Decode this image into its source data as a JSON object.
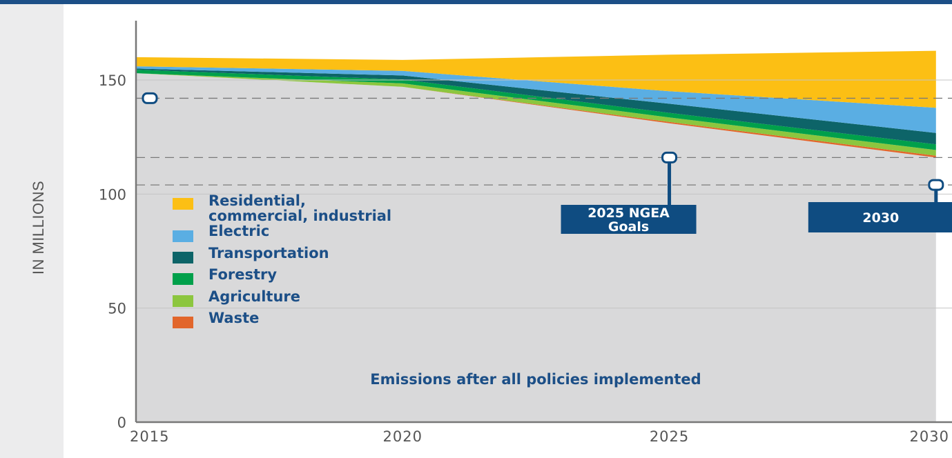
{
  "chart_data": {
    "type": "area",
    "title": "",
    "xlabel": "",
    "ylabel": "IN MILLIONS",
    "x": [
      2015,
      2020,
      2025,
      2030
    ],
    "xlim": [
      2015,
      2030
    ],
    "ylim": [
      0,
      175
    ],
    "x_ticks": [
      "2015",
      "2020",
      "2025",
      "2030"
    ],
    "y_ticks": [
      "0",
      "50",
      "100",
      "150"
    ],
    "grid": true,
    "stacked": true,
    "base": {
      "name": "",
      "color": "#d9d9da",
      "values": [
        153,
        147,
        131,
        116
      ],
      "label": "Emissions after all policies implemented"
    },
    "series": [
      {
        "name": "Waste",
        "color": "#e2662b",
        "values": [
          0,
          0,
          0.6,
          0.8
        ]
      },
      {
        "name": "Agriculture",
        "color": "#8cc63f",
        "values": [
          0,
          1.5,
          2.0,
          2.5
        ]
      },
      {
        "name": "Forestry",
        "color": "#00a04b",
        "values": [
          1.5,
          1.7,
          2.0,
          2.5
        ]
      },
      {
        "name": "Transportation",
        "color": "#0d6468",
        "values": [
          0.5,
          1.8,
          4.0,
          5.0
        ]
      },
      {
        "name": "Electric",
        "color": "#5aaee3",
        "values": [
          1.0,
          2.0,
          5.5,
          11.0
        ]
      },
      {
        "name": "Residential, commercial, industrial",
        "color": "#fcbf14",
        "values": [
          4.0,
          4.8,
          16.0,
          25.0
        ]
      }
    ],
    "reference_lines": [
      {
        "y": 142,
        "style": "dashed"
      },
      {
        "y": 116,
        "style": "dashed"
      },
      {
        "y": 104,
        "style": "dashed"
      }
    ],
    "goals": [
      {
        "label": "",
        "x": 2015,
        "y": 142
      },
      {
        "label": "2025 NGEA Goals",
        "lines": [
          "2025 NGEA",
          "Goals"
        ],
        "x": 2025,
        "y": 116
      },
      {
        "label": "2030",
        "lines": [
          "2030"
        ],
        "x": 2030,
        "y": 104
      }
    ],
    "legend_position": "left-middle"
  },
  "colors": {
    "top_bar": "#1c4f87",
    "left_strip": "#ececed",
    "axis": "#777777",
    "goal_box": "#0f4c81",
    "text_blue": "#1c4f87"
  }
}
